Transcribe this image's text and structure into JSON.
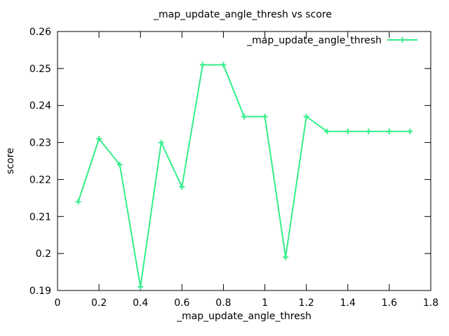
{
  "chart_data": {
    "type": "line",
    "title": "_map_update_angle_thresh vs score",
    "xlabel": "_map_update_angle_thresh",
    "ylabel": "score",
    "xlim": [
      0,
      1.8
    ],
    "ylim": [
      0.19,
      0.26
    ],
    "xticks": [
      "0",
      "0.2",
      "0.4",
      "0.6",
      "0.8",
      "1",
      "1.2",
      "1.4",
      "1.6",
      "1.8"
    ],
    "yticks": [
      "0.19",
      "0.2",
      "0.21",
      "0.22",
      "0.23",
      "0.24",
      "0.25",
      "0.26"
    ],
    "grid": false,
    "legend_position": "top-right",
    "series": [
      {
        "name": "_map_update_angle_thresh",
        "color": "#33ee88",
        "marker": "plus",
        "x": [
          0.1,
          0.2,
          0.3,
          0.4,
          0.5,
          0.6,
          0.7,
          0.8,
          0.9,
          1.0,
          1.1,
          1.2,
          1.3,
          1.4,
          1.5,
          1.6,
          1.7
        ],
        "y": [
          0.214,
          0.231,
          0.224,
          0.191,
          0.23,
          0.218,
          0.251,
          0.251,
          0.237,
          0.237,
          0.199,
          0.237,
          0.233,
          0.233,
          0.233,
          0.233,
          0.233
        ]
      }
    ]
  }
}
